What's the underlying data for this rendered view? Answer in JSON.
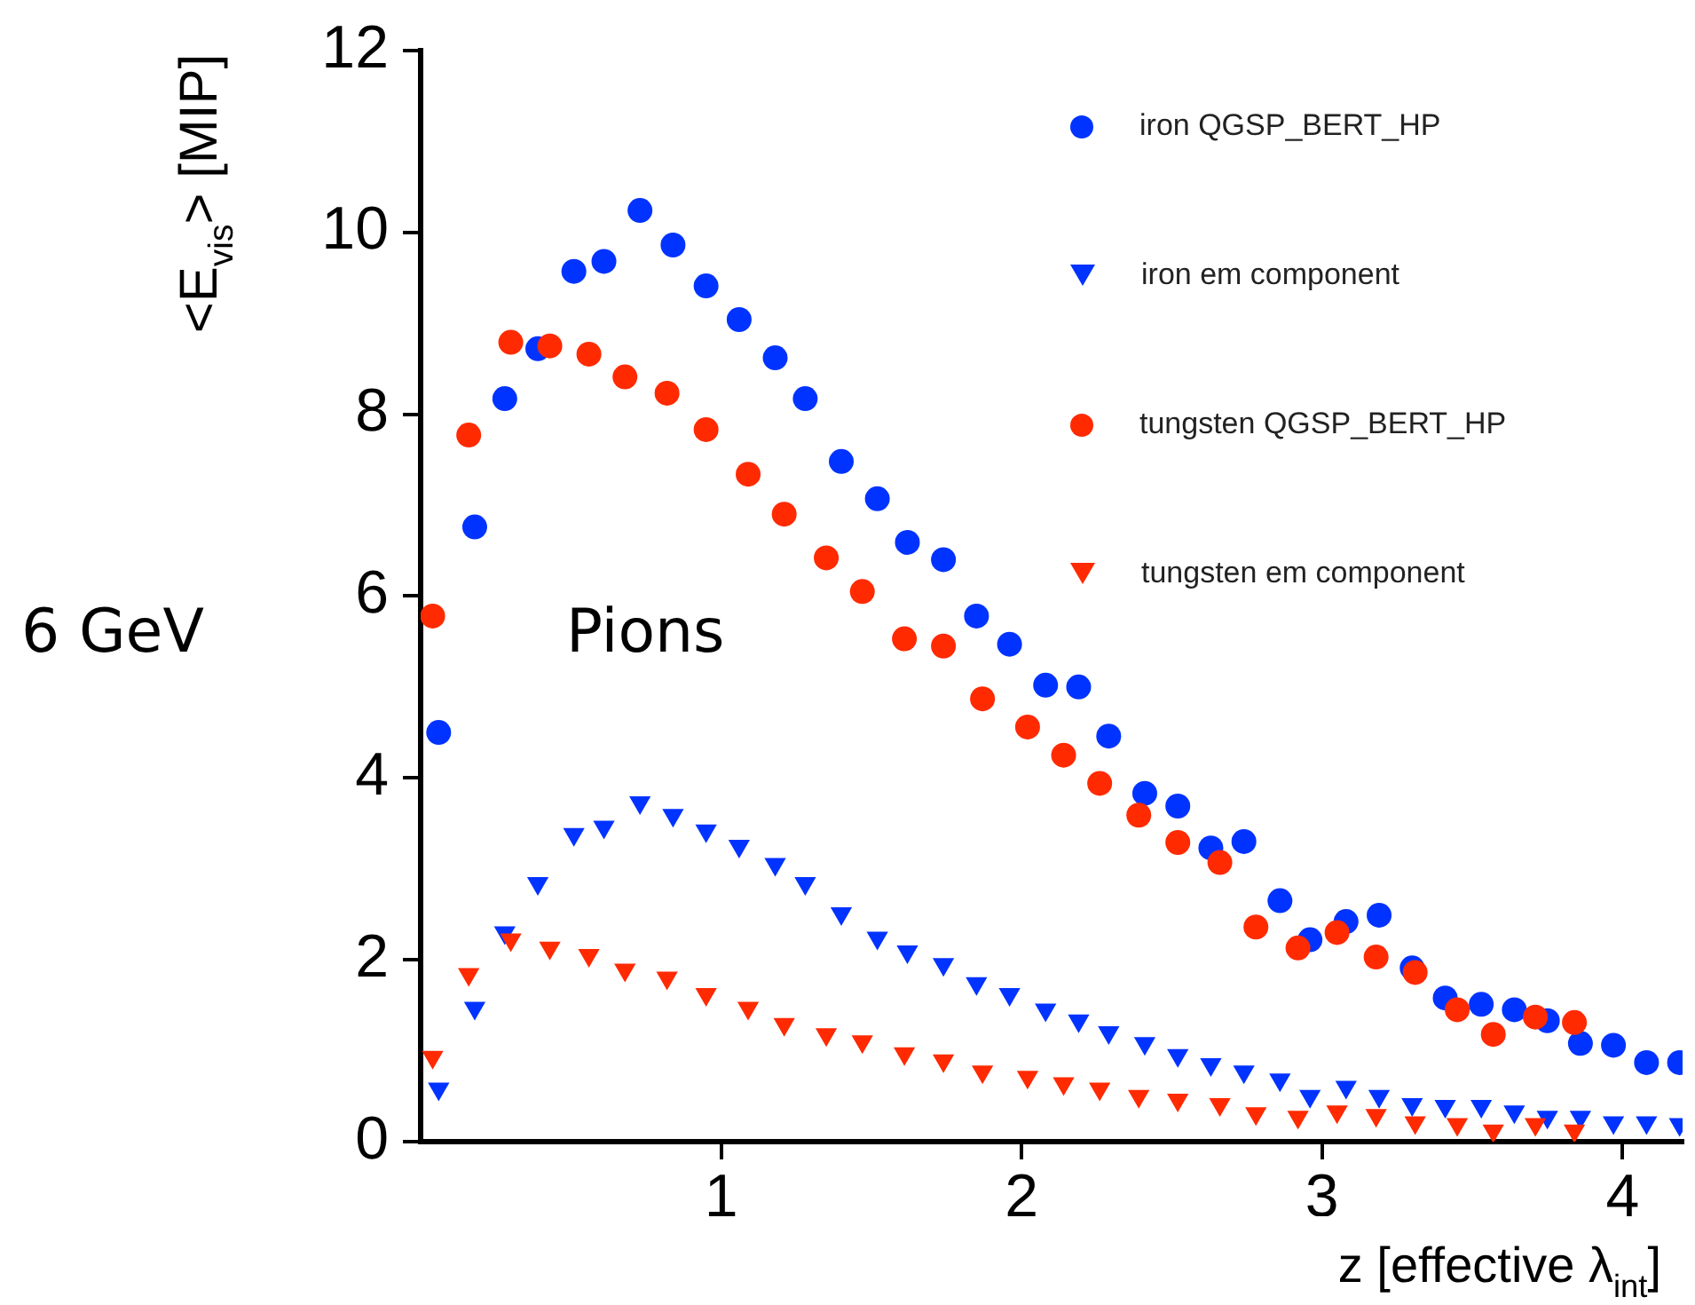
{
  "chart_data": {
    "type": "scatter",
    "xlabel": "z [effective λ$_{int}$]",
    "ylabel": "<E$_{vis}$> [MIP]",
    "xlim": [
      0,
      4.2
    ],
    "xticks": [
      1,
      2,
      3,
      4
    ],
    "ylim": [
      0,
      12
    ],
    "yticks": [
      0,
      2,
      4,
      6,
      8,
      10,
      12
    ],
    "grid": false,
    "legend": "top right",
    "annotations": [
      "6 GeV",
      "Pions"
    ],
    "series": [
      {
        "name": "iron QGSP_BERT_HP",
        "color": "#0033ff",
        "marker": "circle",
        "x": [
          0.06,
          0.18,
          0.28,
          0.39,
          0.51,
          0.61,
          0.73,
          0.84,
          0.95,
          1.06,
          1.18,
          1.28,
          1.4,
          1.52,
          1.62,
          1.74,
          1.85,
          1.96,
          2.08,
          2.19,
          2.29,
          2.41,
          2.52,
          2.63,
          2.74,
          2.86,
          2.96,
          3.08,
          3.19,
          3.3,
          3.41,
          3.53,
          3.64,
          3.75,
          3.86,
          3.97,
          4.08,
          4.19
        ],
        "values": [
          4.5,
          6.76,
          8.17,
          8.72,
          9.57,
          9.68,
          10.24,
          9.86,
          9.41,
          9.04,
          8.62,
          8.17,
          7.48,
          7.07,
          6.59,
          6.4,
          5.78,
          5.47,
          5.02,
          5.0,
          4.46,
          3.83,
          3.69,
          3.23,
          3.3,
          2.65,
          2.22,
          2.42,
          2.49,
          1.91,
          1.58,
          1.51,
          1.45,
          1.33,
          1.08,
          1.06,
          0.87,
          0.87
        ]
      },
      {
        "name": "iron em component",
        "color": "#0033ff",
        "marker": "triangle",
        "x": [
          0.06,
          0.18,
          0.28,
          0.39,
          0.51,
          0.61,
          0.73,
          0.84,
          0.95,
          1.06,
          1.18,
          1.28,
          1.4,
          1.52,
          1.62,
          1.74,
          1.85,
          1.96,
          2.08,
          2.19,
          2.29,
          2.41,
          2.52,
          2.63,
          2.74,
          2.86,
          2.96,
          3.08,
          3.19,
          3.3,
          3.41,
          3.53,
          3.64,
          3.75,
          3.86,
          3.97,
          4.08,
          4.19
        ],
        "values": [
          0.58,
          1.47,
          2.3,
          2.84,
          3.38,
          3.46,
          3.73,
          3.59,
          3.42,
          3.25,
          3.05,
          2.84,
          2.51,
          2.24,
          2.09,
          1.95,
          1.74,
          1.62,
          1.45,
          1.33,
          1.2,
          1.08,
          0.95,
          0.85,
          0.77,
          0.68,
          0.5,
          0.6,
          0.5,
          0.41,
          0.39,
          0.39,
          0.33,
          0.27,
          0.27,
          0.21,
          0.21,
          0.19
        ]
      },
      {
        "name": "tungsten QGSP_BERT_HP",
        "color": "#ff2a00",
        "marker": "circle",
        "x": [
          0.04,
          0.16,
          0.3,
          0.43,
          0.56,
          0.68,
          0.82,
          0.95,
          1.09,
          1.21,
          1.35,
          1.47,
          1.61,
          1.74,
          1.87,
          2.02,
          2.14,
          2.26,
          2.39,
          2.52,
          2.66,
          2.78,
          2.92,
          3.05,
          3.18,
          3.31,
          3.45,
          3.57,
          3.71,
          3.84
        ],
        "values": [
          5.78,
          7.77,
          8.79,
          8.75,
          8.66,
          8.41,
          8.23,
          7.83,
          7.34,
          6.9,
          6.42,
          6.05,
          5.53,
          5.45,
          4.87,
          4.56,
          4.25,
          3.94,
          3.59,
          3.29,
          3.07,
          2.36,
          2.13,
          2.3,
          2.03,
          1.86,
          1.45,
          1.18,
          1.37,
          1.31
        ]
      },
      {
        "name": "tungsten em component",
        "color": "#ff2a00",
        "marker": "triangle",
        "x": [
          0.04,
          0.16,
          0.3,
          0.43,
          0.56,
          0.68,
          0.82,
          0.95,
          1.09,
          1.21,
          1.35,
          1.47,
          1.61,
          1.74,
          1.87,
          2.02,
          2.14,
          2.26,
          2.39,
          2.52,
          2.66,
          2.78,
          2.92,
          3.05,
          3.18,
          3.31,
          3.45,
          3.57,
          3.71,
          3.84
        ],
        "values": [
          0.93,
          1.84,
          2.22,
          2.13,
          2.05,
          1.89,
          1.8,
          1.62,
          1.47,
          1.29,
          1.18,
          1.1,
          0.97,
          0.89,
          0.77,
          0.71,
          0.64,
          0.58,
          0.5,
          0.46,
          0.41,
          0.31,
          0.27,
          0.33,
          0.29,
          0.21,
          0.19,
          0.12,
          0.19,
          0.12
        ]
      }
    ]
  }
}
